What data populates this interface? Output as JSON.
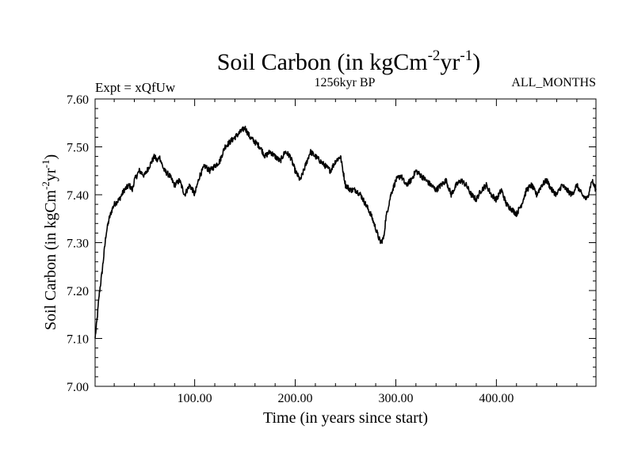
{
  "chart_data": {
    "type": "line",
    "title_main": "Soil Carbon (in kgCm",
    "title_exp1": "-2",
    "title_mid": "yr",
    "title_exp2": "-1",
    "title_close": ")",
    "subtitle_left": "Expt = xQfUw",
    "subtitle_center": "1256kyr BP",
    "subtitle_right": "ALL_MONTHS",
    "xlabel": "Time (in years since start)",
    "ylabel_main": "Soil Carbon (in kgCm",
    "ylabel_exp1": "-2",
    "ylabel_mid": "yr",
    "ylabel_exp2": "-1",
    "ylabel_close": ")",
    "xlim": [
      1,
      499
    ],
    "ylim": [
      7.0,
      7.6
    ],
    "xticks": [
      100,
      200,
      300,
      400
    ],
    "xtick_labels": [
      "100.00",
      "200.00",
      "300.00",
      "400.00"
    ],
    "yticks": [
      7.0,
      7.1,
      7.2,
      7.3,
      7.4,
      7.5,
      7.6
    ],
    "ytick_labels": [
      "7.00",
      "7.10",
      "7.20",
      "7.30",
      "7.40",
      "7.50",
      "7.60"
    ],
    "series": [
      {
        "name": "Soil Carbon",
        "x": [
          1,
          3,
          5,
          8,
          10,
          12,
          15,
          18,
          20,
          25,
          30,
          35,
          38,
          40,
          45,
          50,
          55,
          60,
          63,
          65,
          68,
          70,
          75,
          80,
          85,
          90,
          95,
          98,
          100,
          105,
          110,
          115,
          120,
          125,
          130,
          135,
          140,
          145,
          150,
          155,
          160,
          165,
          170,
          175,
          180,
          185,
          190,
          195,
          200,
          205,
          210,
          215,
          220,
          225,
          230,
          235,
          240,
          245,
          250,
          255,
          260,
          265,
          270,
          275,
          280,
          283,
          285,
          288,
          290,
          295,
          300,
          305,
          310,
          315,
          320,
          325,
          330,
          335,
          340,
          345,
          350,
          355,
          360,
          365,
          370,
          375,
          380,
          385,
          390,
          395,
          400,
          405,
          410,
          415,
          420,
          425,
          430,
          435,
          440,
          445,
          450,
          455,
          460,
          465,
          470,
          475,
          480,
          485,
          490,
          495,
          499
        ],
        "y": [
          7.1,
          7.14,
          7.19,
          7.24,
          7.28,
          7.32,
          7.35,
          7.37,
          7.38,
          7.39,
          7.41,
          7.42,
          7.41,
          7.43,
          7.45,
          7.44,
          7.46,
          7.48,
          7.47,
          7.48,
          7.46,
          7.45,
          7.44,
          7.42,
          7.43,
          7.4,
          7.42,
          7.41,
          7.4,
          7.44,
          7.46,
          7.45,
          7.46,
          7.47,
          7.5,
          7.51,
          7.52,
          7.53,
          7.54,
          7.52,
          7.51,
          7.5,
          7.48,
          7.49,
          7.48,
          7.47,
          7.49,
          7.48,
          7.45,
          7.43,
          7.46,
          7.49,
          7.48,
          7.47,
          7.46,
          7.45,
          7.47,
          7.48,
          7.42,
          7.41,
          7.41,
          7.4,
          7.38,
          7.36,
          7.33,
          7.31,
          7.3,
          7.31,
          7.35,
          7.4,
          7.43,
          7.44,
          7.42,
          7.43,
          7.45,
          7.44,
          7.43,
          7.42,
          7.41,
          7.42,
          7.43,
          7.4,
          7.42,
          7.43,
          7.42,
          7.4,
          7.39,
          7.41,
          7.42,
          7.4,
          7.39,
          7.41,
          7.38,
          7.37,
          7.36,
          7.38,
          7.41,
          7.42,
          7.4,
          7.42,
          7.43,
          7.41,
          7.4,
          7.42,
          7.41,
          7.4,
          7.42,
          7.4,
          7.39,
          7.43,
          7.41
        ]
      }
    ]
  }
}
